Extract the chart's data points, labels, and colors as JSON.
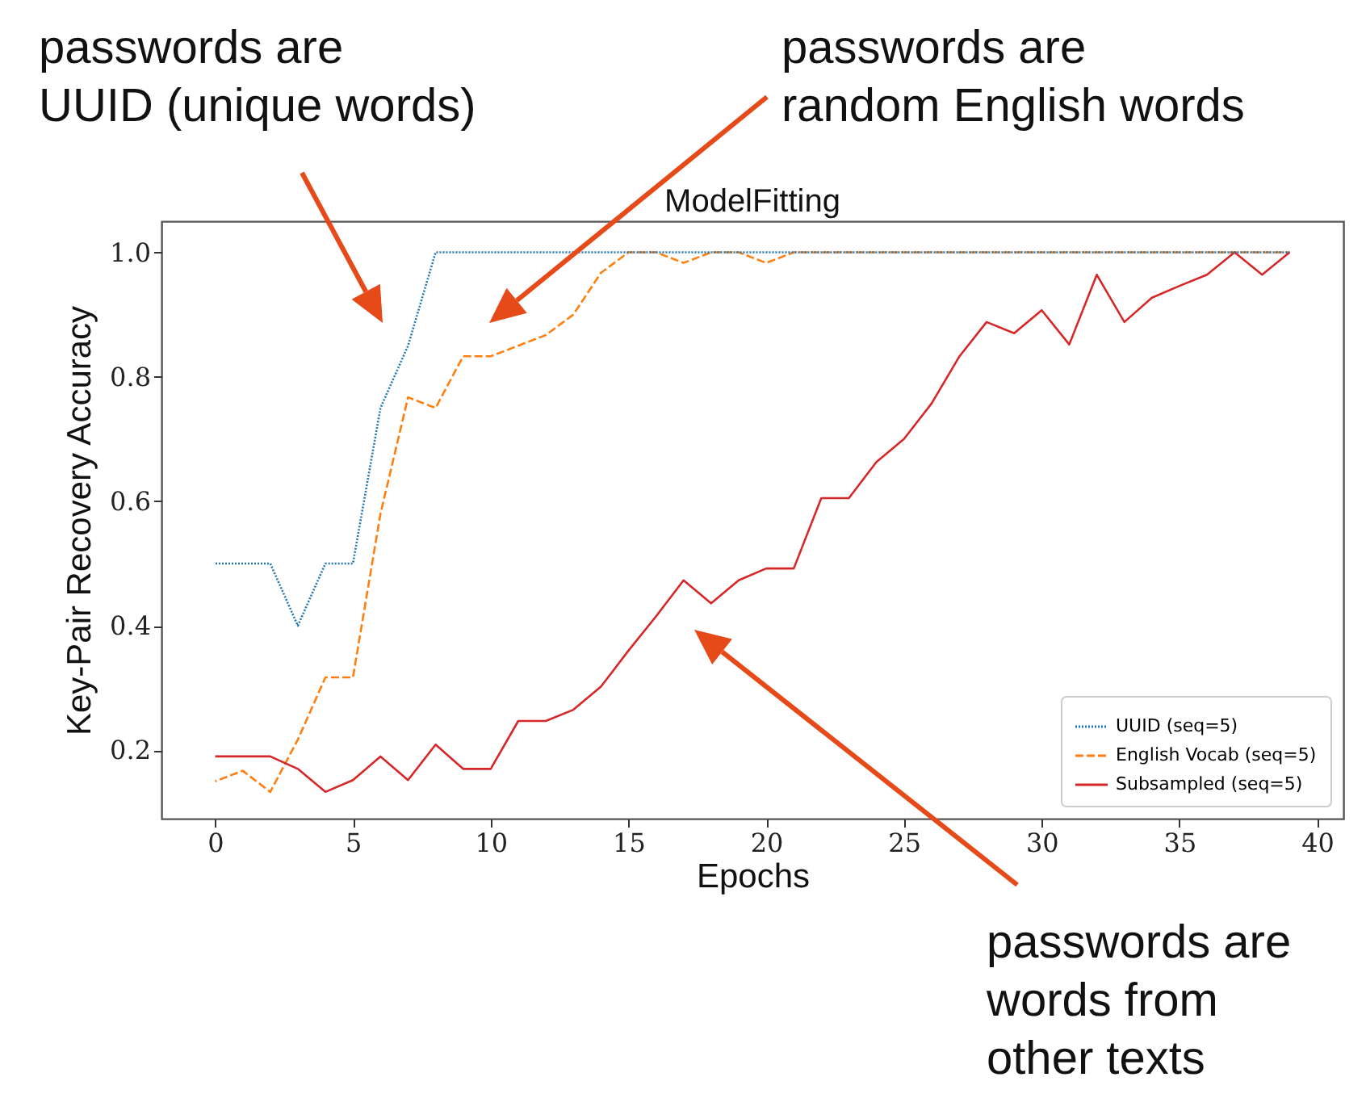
{
  "chart_data": {
    "type": "line",
    "title": "ModelFitting",
    "xlabel": "Epochs",
    "ylabel": "Key-Pair Recovery Accuracy",
    "x": [
      0,
      1,
      2,
      3,
      4,
      5,
      6,
      7,
      8,
      9,
      10,
      11,
      12,
      13,
      14,
      15,
      16,
      17,
      18,
      19,
      20,
      21,
      22,
      23,
      24,
      25,
      26,
      27,
      28,
      29,
      30,
      31,
      32,
      33,
      34,
      35,
      36,
      37,
      38,
      39
    ],
    "series": [
      {
        "name": "UUID (seq=5)",
        "color": "#1f77b4",
        "line_style": "dotted",
        "values": [
          0.5,
          0.5,
          0.5,
          0.4,
          0.5,
          0.5,
          0.75,
          0.85,
          1,
          1,
          1,
          1,
          1,
          1,
          1,
          1,
          1,
          1,
          1,
          1,
          1,
          1,
          1,
          1,
          1,
          1,
          1,
          1,
          1,
          1,
          1,
          1,
          1,
          1,
          1,
          1,
          1,
          1,
          1,
          1
        ]
      },
      {
        "name": "English Vocab (seq=5)",
        "color": "#ff7f0e",
        "line_style": "dashed",
        "values": [
          0.15,
          0.167,
          0.133,
          0.217,
          0.317,
          0.317,
          0.58,
          0.767,
          0.75,
          0.833,
          0.833,
          0.85,
          0.867,
          0.9,
          0.967,
          1,
          1,
          0.983,
          1,
          1,
          0.983,
          1,
          1,
          1,
          1,
          1,
          1,
          1,
          1,
          1,
          1,
          1,
          1,
          1,
          1,
          1,
          1,
          1,
          1,
          1
        ]
      },
      {
        "name": "Subsampled (seq=5)",
        "color": "#d62728",
        "line_style": "solid",
        "values": [
          0.19,
          0.19,
          0.19,
          0.17,
          0.133,
          0.152,
          0.19,
          0.152,
          0.209,
          0.17,
          0.17,
          0.247,
          0.247,
          0.265,
          0.302,
          0.36,
          0.415,
          0.473,
          0.436,
          0.473,
          0.492,
          0.492,
          0.605,
          0.605,
          0.663,
          0.7,
          0.757,
          0.832,
          0.888,
          0.87,
          0.907,
          0.852,
          0.964,
          0.888,
          0.927,
          0.946,
          0.964,
          1,
          0.964,
          1
        ]
      }
    ],
    "xlim": [
      -1.95,
      40.95
    ],
    "ylim": [
      0.09,
      1.05
    ],
    "xticks": [
      0,
      5,
      10,
      15,
      20,
      25,
      30,
      35,
      40
    ],
    "yticks": [
      0.2,
      0.4,
      0.6,
      0.8,
      {
        "value": 1.0,
        "label": "1.0"
      }
    ],
    "legend": "bottom right",
    "grid": false,
    "annotations": [
      "passwords are\nUUID (unique words)",
      "passwords are\nrandom English words",
      "passwords are\nwords from\nother texts"
    ]
  }
}
